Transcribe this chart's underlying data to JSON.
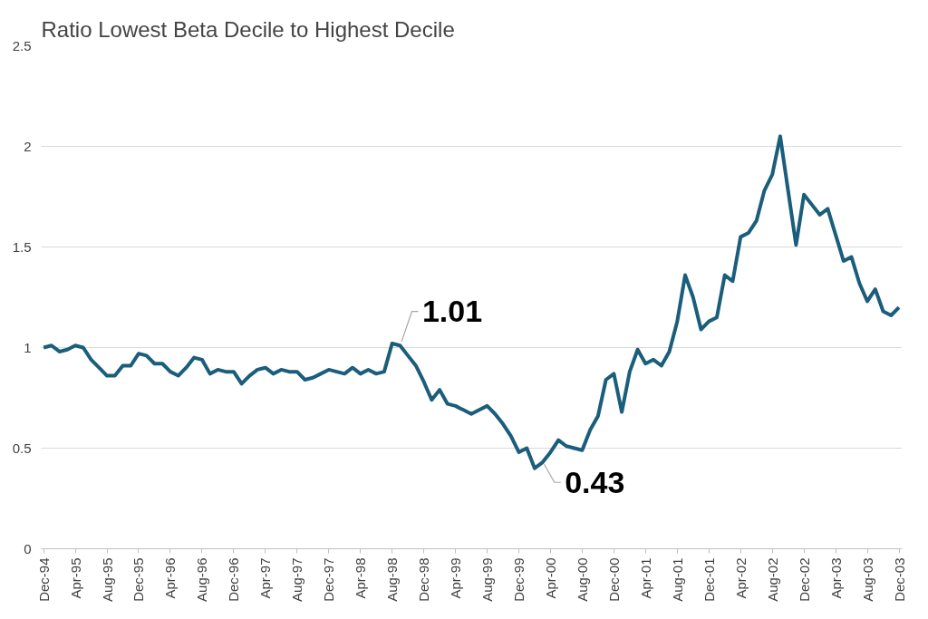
{
  "chart_data": {
    "type": "line",
    "title": "Ratio Lowest Beta Decile to Highest Decile",
    "categories": [
      "Dec-94",
      null,
      null,
      null,
      "Apr-95",
      null,
      null,
      null,
      "Aug-95",
      null,
      null,
      null,
      "Dec-95",
      null,
      null,
      null,
      "Apr-96",
      null,
      null,
      null,
      "Aug-96",
      null,
      null,
      null,
      "Dec-96",
      null,
      null,
      null,
      "Apr-97",
      null,
      null,
      null,
      "Aug-97",
      null,
      null,
      null,
      "Dec-97",
      null,
      null,
      null,
      "Apr-98",
      null,
      null,
      null,
      "Aug-98",
      null,
      null,
      null,
      "Dec-98",
      null,
      null,
      null,
      "Apr-99",
      null,
      null,
      null,
      "Aug-99",
      null,
      null,
      null,
      "Dec-99",
      null,
      null,
      null,
      "Apr-00",
      null,
      null,
      null,
      "Aug-00",
      null,
      null,
      null,
      "Dec-00",
      null,
      null,
      null,
      "Apr-01",
      null,
      null,
      null,
      "Aug-01",
      null,
      null,
      null,
      "Dec-01",
      null,
      null,
      null,
      "Apr-02",
      null,
      null,
      null,
      "Aug-02",
      null,
      null,
      null,
      "Dec-02",
      null,
      null,
      null,
      "Apr-03",
      null,
      null,
      null,
      "Aug-03",
      null,
      null,
      null,
      "Dec-03"
    ],
    "series": [
      {
        "color": "#1b5e7b",
        "values": [
          1.0,
          1.01,
          0.98,
          0.99,
          1.01,
          1.0,
          0.94,
          0.9,
          0.86,
          0.86,
          0.91,
          0.91,
          0.97,
          0.96,
          0.92,
          0.92,
          0.88,
          0.86,
          0.9,
          0.95,
          0.94,
          0.87,
          0.89,
          0.88,
          0.88,
          0.82,
          0.86,
          0.89,
          0.9,
          0.87,
          0.89,
          0.88,
          0.88,
          0.84,
          0.85,
          0.87,
          0.89,
          0.88,
          0.87,
          0.9,
          0.87,
          0.89,
          0.87,
          0.88,
          1.02,
          1.01,
          0.96,
          0.91,
          0.83,
          0.74,
          0.79,
          0.72,
          0.71,
          0.69,
          0.67,
          0.69,
          0.71,
          0.67,
          0.62,
          0.56,
          0.48,
          0.5,
          0.4,
          0.43,
          0.48,
          0.54,
          0.51,
          0.5,
          0.49,
          0.59,
          0.66,
          0.84,
          0.87,
          0.68,
          0.88,
          0.99,
          0.92,
          0.94,
          0.91,
          0.98,
          1.13,
          1.36,
          1.25,
          1.09,
          1.13,
          1.15,
          1.36,
          1.33,
          1.55,
          1.57,
          1.63,
          1.78,
          1.86,
          2.05,
          1.78,
          1.51,
          1.76,
          1.71,
          1.66,
          1.69,
          1.56,
          1.43,
          1.45,
          1.32,
          1.23,
          1.29,
          1.18,
          1.16,
          1.2
        ]
      }
    ],
    "ylim": [
      0,
      2.5
    ],
    "yticks": [
      0,
      0.5,
      1,
      1.5,
      2,
      2.5
    ],
    "grid": "y",
    "marker": "none",
    "line_style": "solid",
    "annotations": [
      "1.01",
      "0.43"
    ]
  }
}
